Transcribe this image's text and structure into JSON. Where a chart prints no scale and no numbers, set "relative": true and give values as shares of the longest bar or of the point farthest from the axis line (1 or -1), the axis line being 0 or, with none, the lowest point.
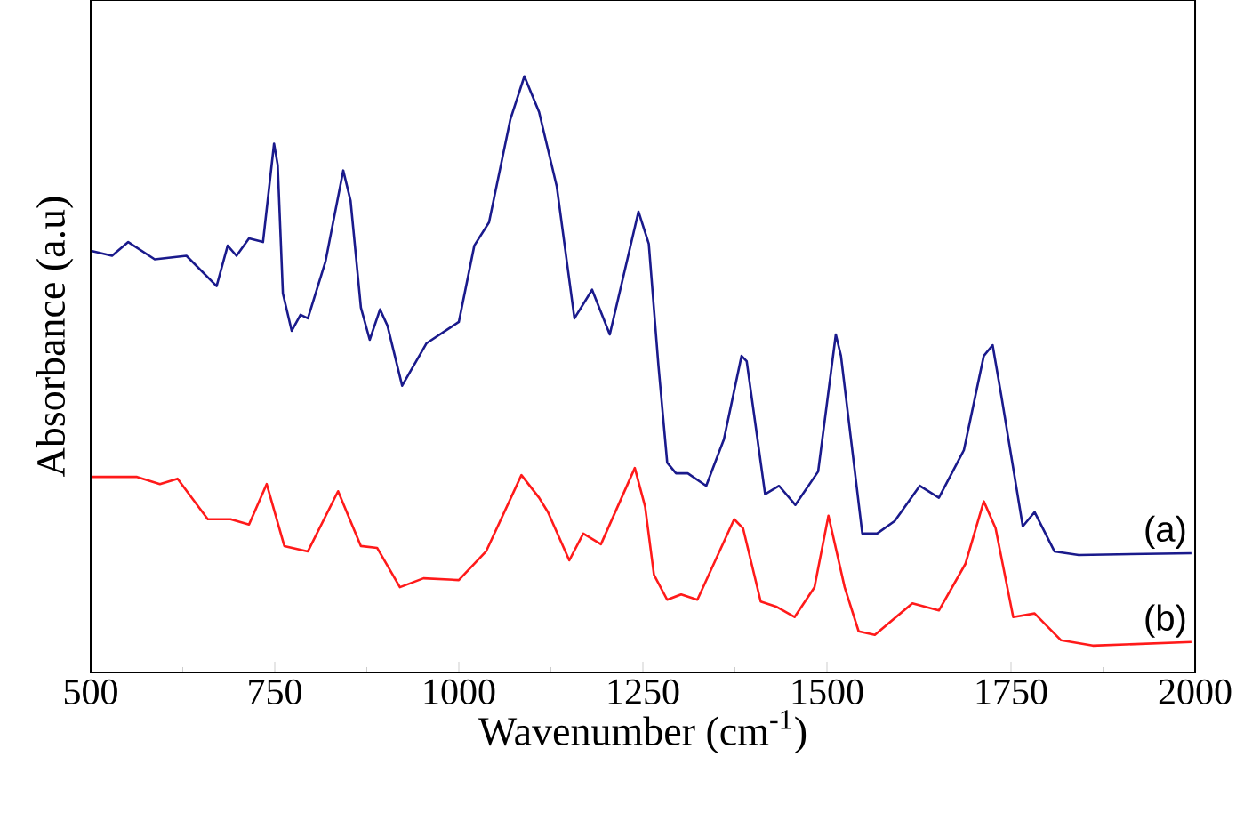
{
  "chart_data": {
    "type": "line",
    "relative": true,
    "xlabel": "Wavenumber (cm$^{-1}$)",
    "ylabel": "Absorbance (a.u)",
    "xlim": [
      500,
      2000
    ],
    "xticks": [
      500,
      750,
      1000,
      1250,
      1500,
      1750,
      2000
    ],
    "grid": false,
    "marker": "none",
    "line_style": "solid",
    "series": [
      {
        "name": "(a)",
        "color": "#1a1a8c",
        "x": [
          502,
          529,
          551,
          587,
          630,
          671,
          686,
          698,
          715,
          734,
          749,
          754,
          761,
          773,
          785,
          795,
          819,
          843,
          853,
          867,
          879,
          893,
          903,
          923,
          956,
          1000,
          1021,
          1041,
          1070,
          1089,
          1109,
          1133,
          1157,
          1181,
          1205,
          1244,
          1258,
          1271,
          1283,
          1295,
          1311,
          1336,
          1360,
          1384,
          1391,
          1416,
          1435,
          1457,
          1488,
          1512,
          1519,
          1548,
          1568,
          1592,
          1626,
          1652,
          1686,
          1713,
          1725,
          1737,
          1766,
          1782,
          1809,
          1842,
          1995
        ],
        "values": [
          0.707,
          0.699,
          0.722,
          0.693,
          0.699,
          0.648,
          0.716,
          0.699,
          0.728,
          0.722,
          0.887,
          0.851,
          0.636,
          0.573,
          0.6,
          0.594,
          0.69,
          0.842,
          0.791,
          0.612,
          0.558,
          0.609,
          0.582,
          0.481,
          0.552,
          0.588,
          0.716,
          0.755,
          0.928,
          1.0,
          0.94,
          0.815,
          0.594,
          0.642,
          0.567,
          0.773,
          0.719,
          0.516,
          0.352,
          0.334,
          0.334,
          0.313,
          0.391,
          0.531,
          0.522,
          0.299,
          0.313,
          0.281,
          0.337,
          0.567,
          0.531,
          0.233,
          0.233,
          0.254,
          0.313,
          0.293,
          0.373,
          0.531,
          0.549,
          0.463,
          0.245,
          0.269,
          0.203,
          0.197,
          0.2
        ]
      },
      {
        "name": "(b)",
        "color": "#ff1a1a",
        "x": [
          502,
          563,
          594,
          618,
          659,
          690,
          715,
          739,
          763,
          795,
          836,
          867,
          889,
          920,
          952,
          1000,
          1037,
          1085,
          1109,
          1121,
          1150,
          1169,
          1193,
          1239,
          1253,
          1265,
          1283,
          1302,
          1324,
          1374,
          1386,
          1410,
          1432,
          1456,
          1483,
          1502,
          1524,
          1543,
          1565,
          1616,
          1652,
          1688,
          1713,
          1729,
          1753,
          1782,
          1818,
          1861,
          1995
        ],
        "values": [
          0.328,
          0.328,
          0.316,
          0.325,
          0.257,
          0.257,
          0.248,
          0.316,
          0.212,
          0.203,
          0.304,
          0.212,
          0.209,
          0.143,
          0.158,
          0.155,
          0.203,
          0.331,
          0.293,
          0.269,
          0.188,
          0.233,
          0.215,
          0.343,
          0.278,
          0.164,
          0.122,
          0.131,
          0.122,
          0.257,
          0.242,
          0.119,
          0.11,
          0.093,
          0.143,
          0.263,
          0.143,
          0.069,
          0.063,
          0.116,
          0.104,
          0.182,
          0.287,
          0.242,
          0.093,
          0.099,
          0.054,
          0.045,
          0.051
        ]
      }
    ]
  }
}
